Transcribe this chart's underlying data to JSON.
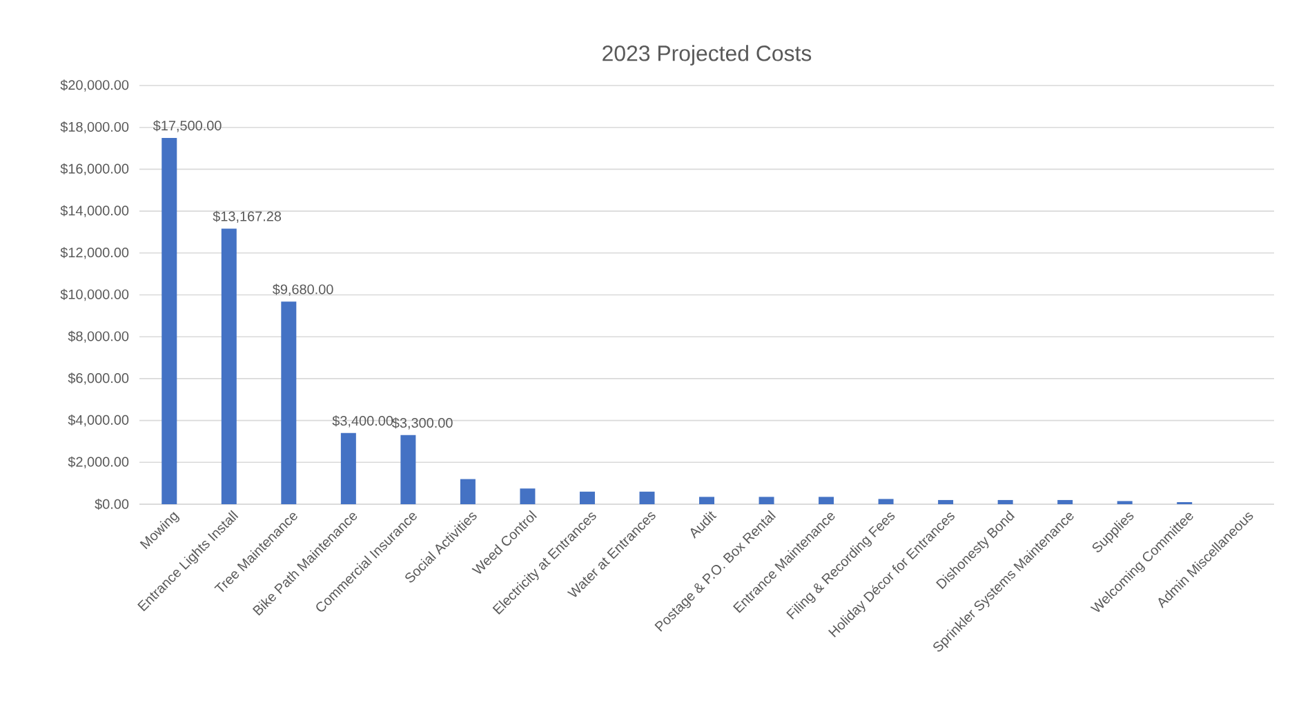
{
  "chart_data": {
    "type": "bar",
    "title": "2023 Projected Costs",
    "categories": [
      "Mowing",
      "Entrance Lights Install",
      "Tree Maintenance",
      "Bike Path Maintenance",
      "Commercial Insurance",
      "Social Activities",
      "Weed Control",
      "Electricity at Entrances",
      "Water at Entrances",
      "Audit",
      "Postage & P.O. Box Rental",
      "Entrance Maintenance",
      "Filing & Recording Fees",
      "Holiday Décor for Entrances",
      "Dishonesty Bond",
      "Sprinkler Systems Maintenance",
      "Supplies",
      "Welcoming Committee",
      "Admin Miscellaneous"
    ],
    "values": [
      17500,
      13167.28,
      9680,
      3400,
      3300,
      1200,
      750,
      600,
      600,
      350,
      350,
      350,
      250,
      200,
      200,
      200,
      150,
      100,
      0
    ],
    "value_labels": [
      "$17,500.00",
      "$13,167.28",
      "$9,680.00",
      "$3,400.00",
      "$3,300.00",
      null,
      null,
      null,
      null,
      null,
      null,
      null,
      null,
      null,
      null,
      null,
      null,
      null,
      null
    ],
    "color": "#4472c4",
    "ylim": [
      0,
      20000
    ],
    "yticks": [
      {
        "value": 0,
        "label": "$0.00"
      },
      {
        "value": 2000,
        "label": "$2,000.00"
      },
      {
        "value": 4000,
        "label": "$4,000.00"
      },
      {
        "value": 6000,
        "label": "$6,000.00"
      },
      {
        "value": 8000,
        "label": "$8,000.00"
      },
      {
        "value": 10000,
        "label": "$10,000.00"
      },
      {
        "value": 12000,
        "label": "$12,000.00"
      },
      {
        "value": 14000,
        "label": "$14,000.00"
      },
      {
        "value": 16000,
        "label": "$16,000.00"
      },
      {
        "value": 18000,
        "label": "$18,000.00"
      },
      {
        "value": 20000,
        "label": "$20,000.00"
      }
    ],
    "grid": "y"
  }
}
